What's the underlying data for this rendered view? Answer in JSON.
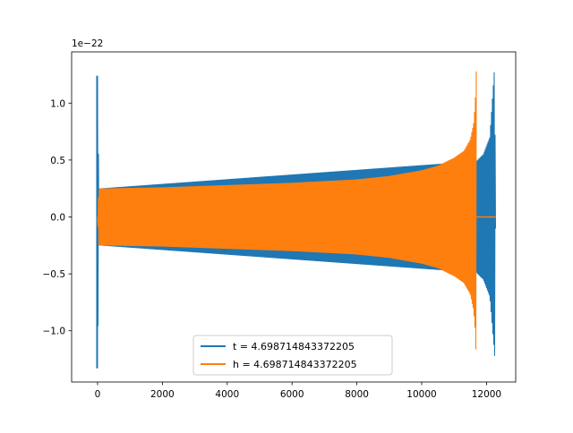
{
  "chart_data": {
    "type": "line",
    "title": "",
    "xlabel": "",
    "ylabel": "",
    "xlim": [
      -800,
      12900
    ],
    "ylim": [
      -1.45,
      1.45
    ],
    "y_offset_label": "1e−22",
    "grid": false,
    "legend_position": "lower-center",
    "x_ticks": [
      0,
      2000,
      4000,
      6000,
      8000,
      10000,
      12000
    ],
    "x_tick_labels": [
      "0",
      "2000",
      "4000",
      "6000",
      "8000",
      "10000",
      "12000"
    ],
    "y_ticks": [
      -1.0,
      -0.5,
      0.0,
      0.5,
      1.0
    ],
    "y_tick_labels": [
      "−1.0",
      "−0.5",
      "0.0",
      "0.5",
      "1.0"
    ],
    "series": [
      {
        "name": "t = 4.698714843372205",
        "color": "#1f77b4",
        "envelope": {
          "x": [
            0,
            40,
            11700,
            11720,
            11900,
            12100,
            12250,
            12280
          ],
          "upper": [
            1.24,
            0.25,
            0.49,
            0.5,
            0.55,
            0.7,
            1.33,
            0.0
          ],
          "lower": [
            -1.33,
            -0.25,
            -0.49,
            -0.5,
            -0.55,
            -0.7,
            -1.22,
            0.0
          ]
        }
      },
      {
        "name": "h = 4.698714843372205",
        "color": "#ff7f0e",
        "envelope": {
          "x": [
            0,
            40,
            2000,
            4000,
            6000,
            8000,
            9000,
            10000,
            10500,
            11000,
            11300,
            11500,
            11600,
            11650,
            11690
          ],
          "upper": [
            0.0,
            0.25,
            0.26,
            0.28,
            0.3,
            0.33,
            0.36,
            0.41,
            0.45,
            0.52,
            0.58,
            0.68,
            0.82,
            1.0,
            1.33
          ],
          "lower": [
            0.0,
            -0.25,
            -0.26,
            -0.28,
            -0.3,
            -0.33,
            -0.36,
            -0.41,
            -0.45,
            -0.52,
            -0.58,
            -0.68,
            -0.82,
            -1.0,
            -1.33
          ]
        },
        "flat_after": {
          "x": [
            11690,
            12280
          ],
          "y": 0.0
        }
      }
    ]
  }
}
